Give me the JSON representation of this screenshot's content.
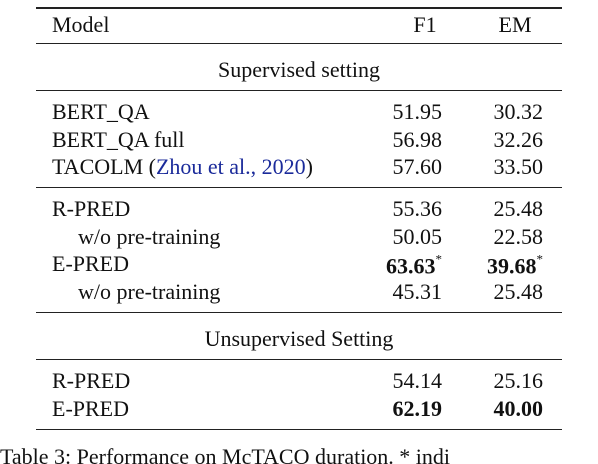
{
  "table": {
    "header": {
      "model": "Model",
      "f1": "F1",
      "em": "EM"
    },
    "blocks": [
      {
        "heading": "Supervised setting",
        "rows": [
          {
            "model": [
              "BERT_QA"
            ],
            "indent": false,
            "f1": {
              "text": "51.95",
              "bold": false
            },
            "em": {
              "text": "30.32",
              "bold": false
            }
          },
          {
            "model": [
              "BERT_QA full"
            ],
            "indent": false,
            "f1": {
              "text": "56.98",
              "bold": false
            },
            "em": {
              "text": "32.26",
              "bold": false
            }
          },
          {
            "model": [
              "TACOLM (",
              "Zhou et al., 2020",
              ")"
            ],
            "indent": false,
            "f1": {
              "text": "57.60",
              "bold": false
            },
            "em": {
              "text": "33.50",
              "bold": false
            }
          }
        ]
      },
      {
        "rows": [
          {
            "model": [
              "R-PRED"
            ],
            "indent": false,
            "f1": {
              "text": "55.36",
              "bold": false
            },
            "em": {
              "text": "25.48",
              "bold": false
            }
          },
          {
            "model": [
              "w/o pre-training"
            ],
            "indent": true,
            "f1": {
              "text": "50.05",
              "bold": false
            },
            "em": {
              "text": "22.58",
              "bold": false
            }
          },
          {
            "model": [
              "E-PRED"
            ],
            "indent": false,
            "f1": {
              "text": "63.63",
              "bold": true,
              "mark": "*"
            },
            "em": {
              "text": "39.68",
              "bold": true,
              "mark": "*"
            }
          },
          {
            "model": [
              "w/o pre-training"
            ],
            "indent": true,
            "f1": {
              "text": "45.31",
              "bold": false
            },
            "em": {
              "text": "25.48",
              "bold": false
            }
          }
        ]
      },
      {
        "heading": "Unsupervised Setting",
        "rows": [
          {
            "model": [
              "R-PRED"
            ],
            "indent": false,
            "f1": {
              "text": "54.14",
              "bold": false
            },
            "em": {
              "text": "25.16",
              "bold": false
            }
          },
          {
            "model": [
              "E-PRED"
            ],
            "indent": false,
            "f1": {
              "text": "62.19",
              "bold": true
            },
            "em": {
              "text": "40.00",
              "bold": true
            }
          }
        ]
      }
    ],
    "caption": "Table 3: Performance on McTACO duration. * indi"
  }
}
